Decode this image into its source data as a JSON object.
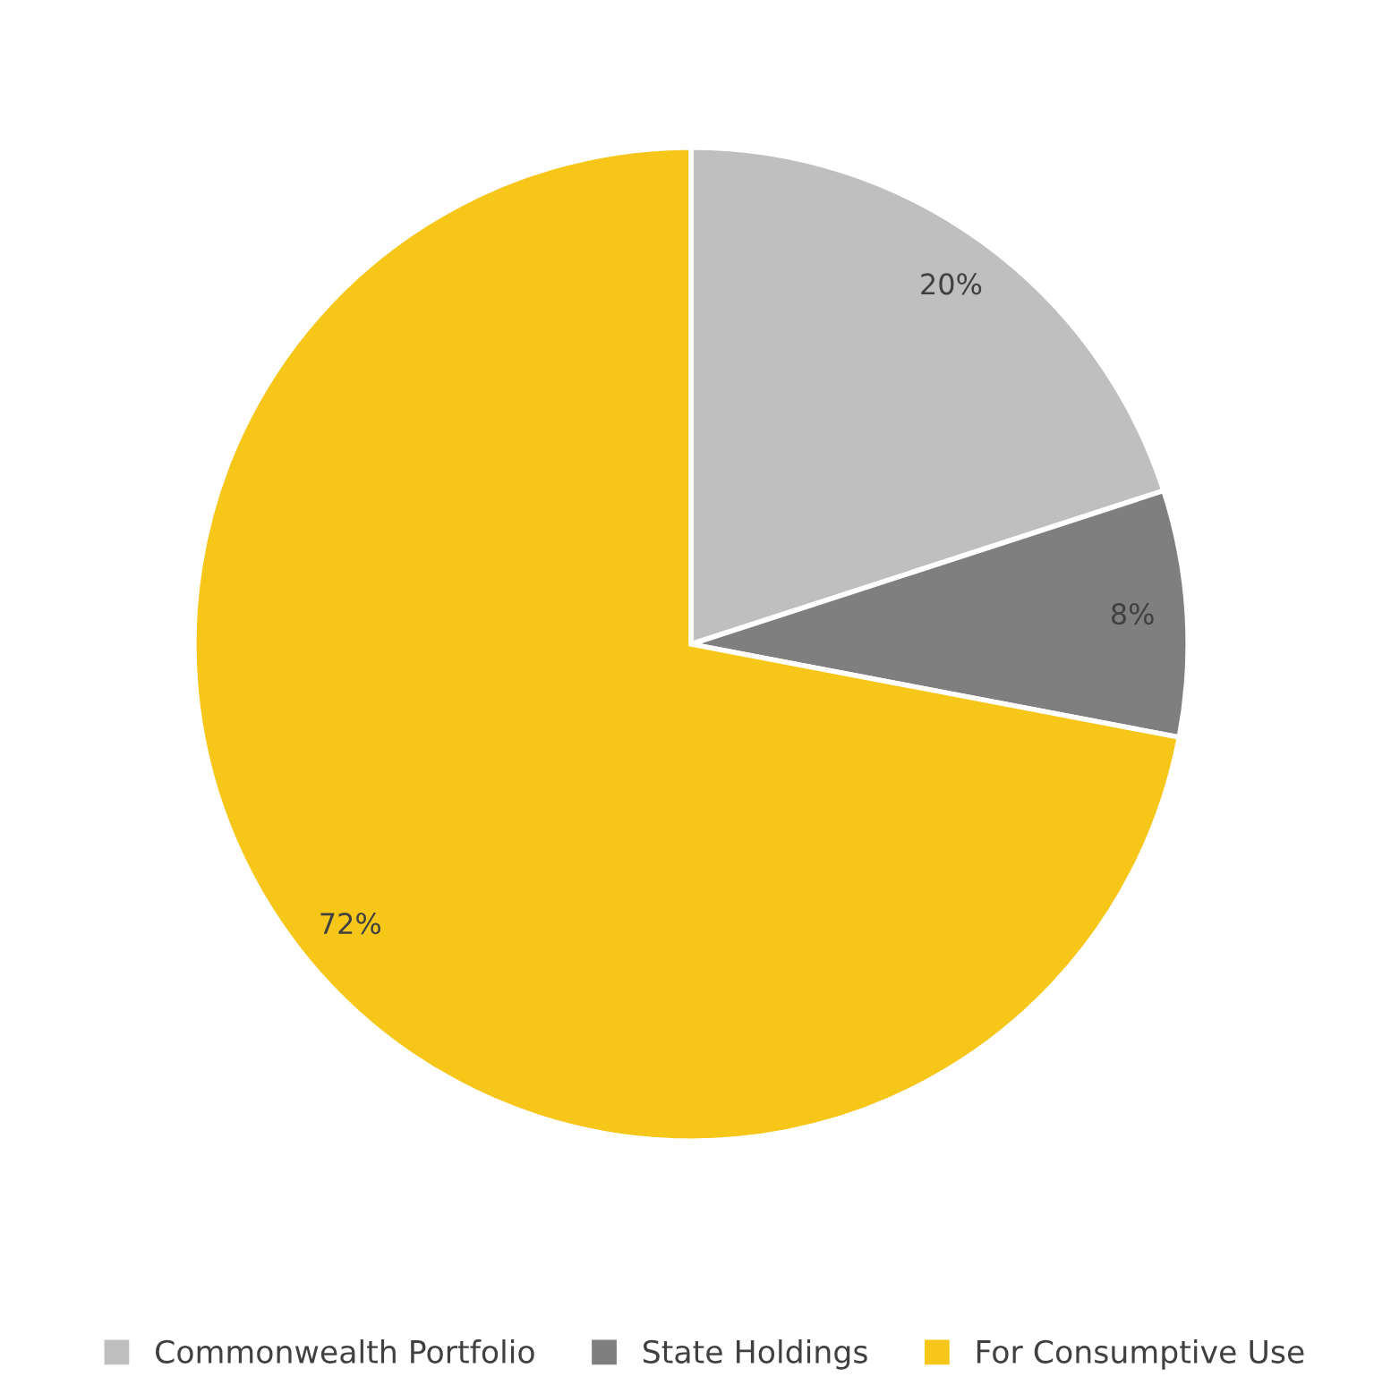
{
  "chart_data": {
    "type": "pie",
    "categories": [
      "Commonwealth Portfolio",
      "State Holdings",
      "For Consumptive Use"
    ],
    "values": [
      20,
      8,
      72
    ],
    "colors": [
      "#bfbfbf",
      "#7f7f7f",
      "#f6c619"
    ],
    "value_labels": [
      "20%",
      "8%",
      "72%"
    ],
    "legend": "bottom"
  }
}
